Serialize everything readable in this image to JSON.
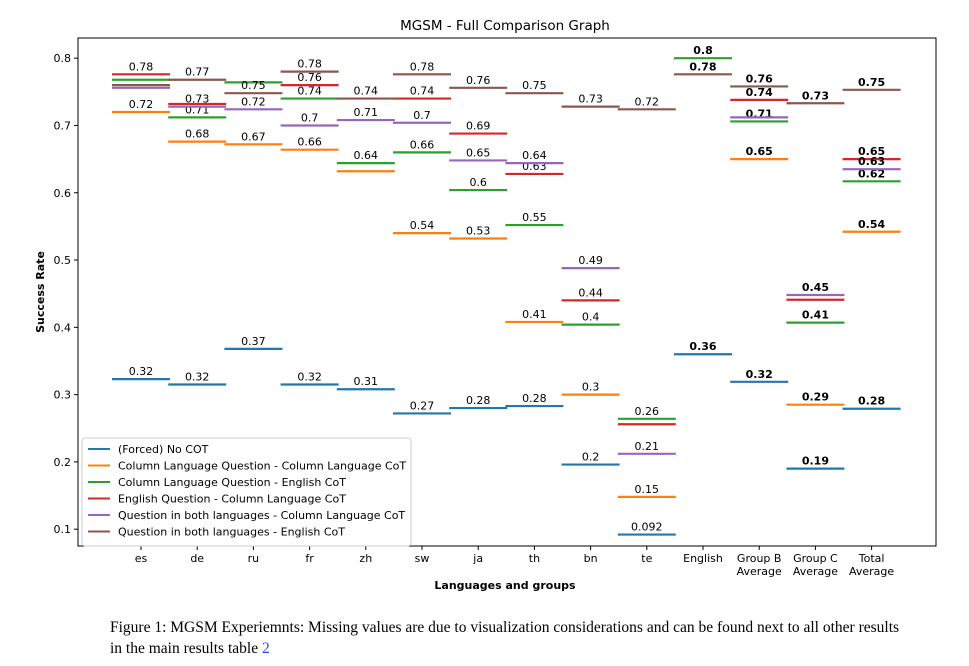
{
  "chart_data": {
    "type": "scatter",
    "title": "MGSM - Full Comparison Graph",
    "xlabel": "Languages and groups",
    "ylabel": "Success Rate",
    "ylim": [
      0.075,
      0.83
    ],
    "yticks": [
      0.1,
      0.2,
      0.3,
      0.4,
      0.5,
      0.6,
      0.7,
      0.8
    ],
    "ytick_labels": [
      "0.1",
      "0.2",
      "0.3",
      "0.4",
      "0.5",
      "0.6",
      "0.7",
      "0.8"
    ],
    "categories": [
      "es",
      "de",
      "ru",
      "fr",
      "zh",
      "sw",
      "ja",
      "th",
      "bn",
      "te",
      "English",
      "Group B Average",
      "Group C Average",
      "Total Average"
    ],
    "category_labels": [
      [
        "es"
      ],
      [
        "de"
      ],
      [
        "ru"
      ],
      [
        "fr"
      ],
      [
        "zh"
      ],
      [
        "sw"
      ],
      [
        "ja"
      ],
      [
        "th"
      ],
      [
        "bn"
      ],
      [
        "te"
      ],
      [
        "English"
      ],
      [
        "Group B",
        "Average"
      ],
      [
        "Group C",
        "Average"
      ],
      [
        "Total",
        "Average"
      ]
    ],
    "bold_label_categories": [
      "English",
      "Group B Average",
      "Group C Average",
      "Total Average"
    ],
    "legend_position": "lower-left",
    "series": [
      {
        "name": "(Forced) No COT",
        "color": "#1f77b4",
        "values": [
          0.323,
          0.315,
          0.368,
          0.315,
          0.308,
          0.272,
          0.28,
          0.283,
          0.196,
          0.092,
          0.36,
          0.319,
          0.19,
          0.279
        ],
        "labels": [
          "0.32",
          "0.32",
          "0.37",
          "0.32",
          "0.31",
          "0.27",
          "0.28",
          "0.28",
          "0.2",
          "0.092",
          "0.36",
          "0.32",
          "0.19",
          "0.28"
        ]
      },
      {
        "name": "Column Language Question - Column Language CoT",
        "color": "#ff7f0e",
        "values": [
          0.72,
          0.676,
          0.672,
          0.664,
          0.632,
          0.54,
          0.532,
          0.408,
          0.3,
          0.148,
          null,
          0.65,
          0.285,
          0.542
        ],
        "labels": [
          "0.72",
          "0.68",
          "0.67",
          "0.66",
          "",
          "0.54",
          "0.53",
          "0.41",
          "0.3",
          "0.15",
          "",
          "0.65",
          "0.29",
          "0.54"
        ]
      },
      {
        "name": "Column Language Question - English CoT",
        "color": "#2ca02c",
        "values": [
          0.768,
          0.712,
          0.764,
          0.74,
          0.644,
          0.66,
          0.604,
          0.552,
          0.404,
          0.264,
          0.8,
          0.706,
          0.407,
          0.617
        ],
        "labels": [
          "",
          "0.71",
          "",
          "0.74",
          "0.64",
          "0.66",
          "0.6",
          "0.55",
          "0.4",
          "0.26",
          "0.8",
          "0.71",
          "0.41",
          "0.62"
        ]
      },
      {
        "name": "English Question - Column Language CoT",
        "color": "#d62728",
        "values": [
          0.776,
          0.732,
          null,
          0.76,
          null,
          0.74,
          0.688,
          0.628,
          0.44,
          0.256,
          null,
          0.738,
          0.441,
          0.65
        ],
        "labels": [
          "0.78",
          "",
          "",
          "0.76",
          "",
          "0.74",
          "0.69",
          "0.63",
          "0.44",
          "",
          "",
          "0.74",
          "",
          "0.65"
        ]
      },
      {
        "name": "Question in both languages - Column Language CoT",
        "color": "#9467bd",
        "values": [
          0.756,
          0.728,
          0.724,
          0.7,
          0.708,
          0.704,
          0.648,
          0.644,
          0.488,
          0.212,
          null,
          0.712,
          0.448,
          0.635
        ],
        "labels": [
          "",
          "0.73",
          "0.72",
          "0.7",
          "0.71",
          "0.7",
          "0.65",
          "0.64",
          "0.49",
          "0.21",
          "",
          "",
          "0.45",
          "0.63"
        ]
      },
      {
        "name": "Question in both languages - English CoT",
        "color": "#8c564b",
        "values": [
          0.76,
          0.768,
          0.748,
          0.78,
          0.74,
          0.776,
          0.756,
          0.748,
          0.728,
          0.724,
          0.776,
          0.758,
          0.733,
          0.753
        ],
        "labels": [
          "",
          "0.77",
          "0.75",
          "0.78",
          "0.74",
          "0.78",
          "0.76",
          "0.75",
          "0.73",
          "0.72",
          "0.78",
          "0.76",
          "0.73",
          "0.75"
        ]
      }
    ]
  },
  "caption": {
    "text": "Figure 1: MGSM Experiemnts: Missing values are due to visualization considerations and can be found next to all other results in the main results table ",
    "ref": "2"
  }
}
